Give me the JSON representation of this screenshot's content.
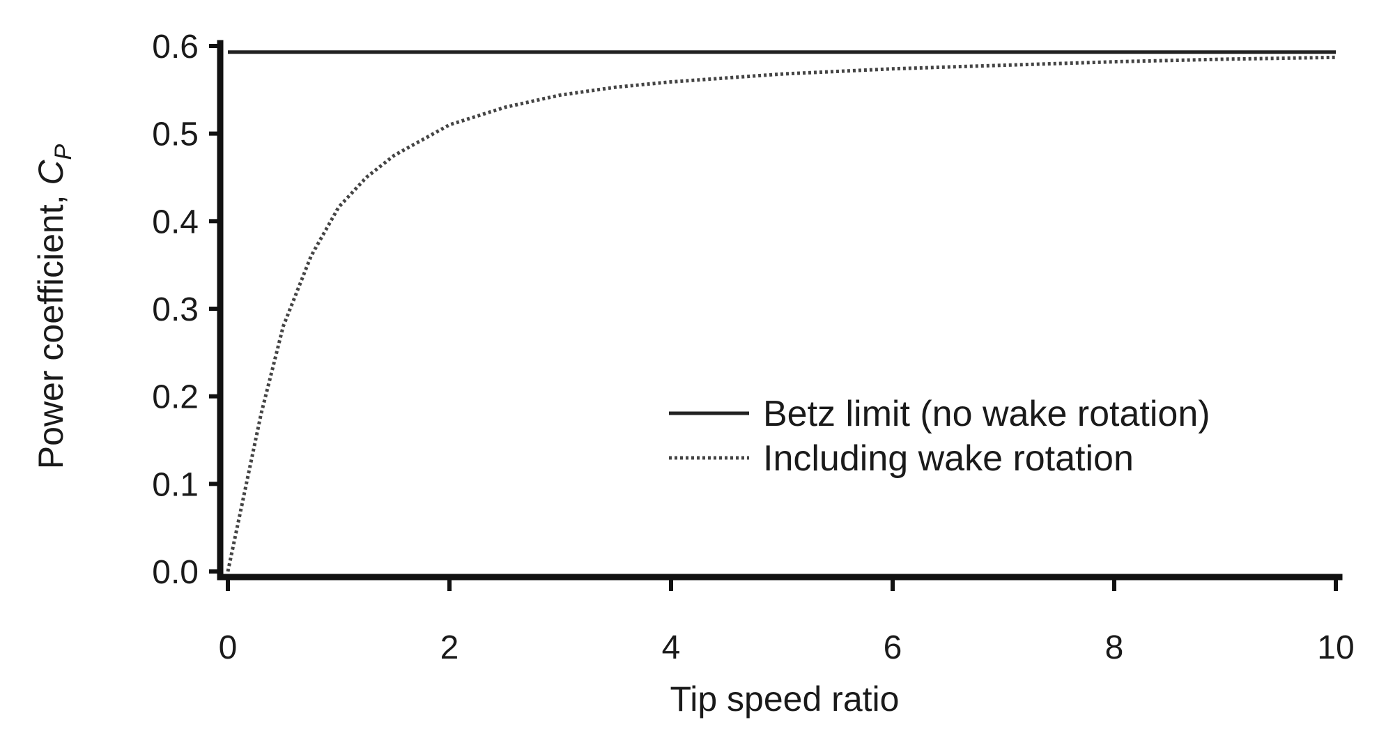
{
  "chart_data": {
    "type": "line",
    "title": "",
    "xlabel": "Tip speed ratio",
    "ylabel": "Power coefficient, ",
    "ylabel_symbol": "C",
    "ylabel_subscript": "P",
    "xlim": [
      0,
      10
    ],
    "ylim": [
      0,
      0.6
    ],
    "x_ticks": [
      "0",
      "2",
      "4",
      "6",
      "8",
      "10"
    ],
    "y_ticks": [
      "0.0",
      "0.1",
      "0.2",
      "0.3",
      "0.4",
      "0.5",
      "0.6"
    ],
    "grid": false,
    "legend_position": "center-right",
    "series": [
      {
        "name": "Betz limit (no wake rotation)",
        "style": "solid",
        "color": "#222222",
        "x": [
          0,
          10
        ],
        "y": [
          0.593,
          0.593
        ]
      },
      {
        "name": "Including wake rotation",
        "style": "dotted",
        "color": "#444444",
        "x": [
          0,
          0.1,
          0.2,
          0.3,
          0.4,
          0.5,
          0.75,
          1,
          1.25,
          1.5,
          2,
          2.5,
          3,
          3.5,
          4,
          5,
          6,
          7,
          8,
          9,
          10
        ],
        "y": [
          0,
          0.06,
          0.12,
          0.18,
          0.23,
          0.28,
          0.36,
          0.416,
          0.45,
          0.475,
          0.51,
          0.53,
          0.544,
          0.553,
          0.559,
          0.568,
          0.574,
          0.578,
          0.582,
          0.585,
          0.587
        ]
      }
    ]
  }
}
